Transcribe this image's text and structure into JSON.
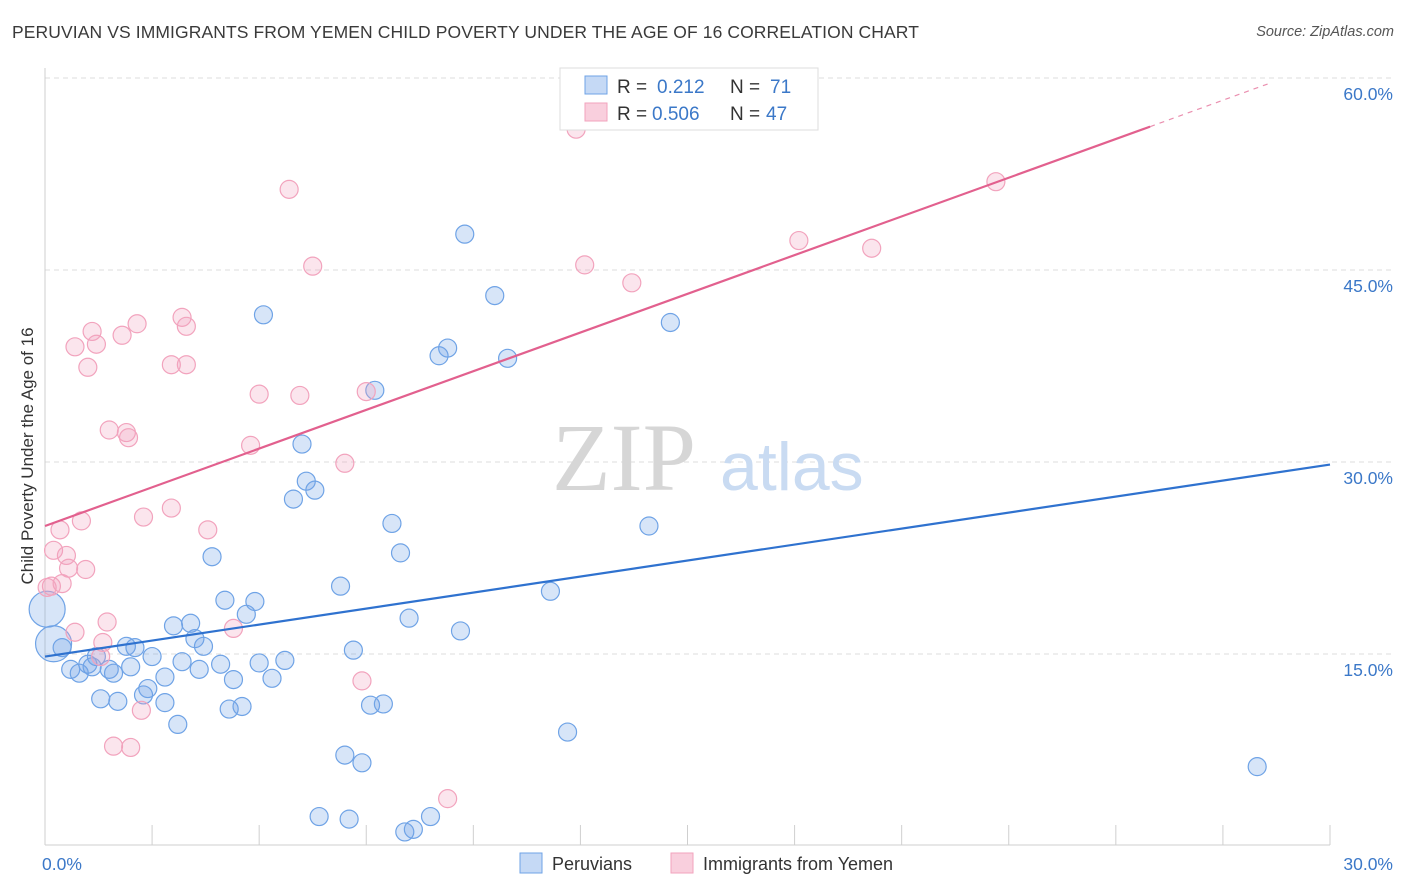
{
  "header": {
    "title": "PERUVIAN VS IMMIGRANTS FROM YEMEN CHILD POVERTY UNDER THE AGE OF 16 CORRELATION CHART",
    "source": "Source: ZipAtlas.com"
  },
  "watermark": {
    "zip": "ZIP",
    "atlas": "atlas"
  },
  "chart_data": {
    "type": "scatter",
    "title": "PERUVIAN VS IMMIGRANTS FROM YEMEN CHILD POVERTY UNDER THE AGE OF 16 CORRELATION CHART",
    "xlabel": "",
    "ylabel": "Child Poverty Under the Age of 16",
    "xlim": [
      0,
      30
    ],
    "ylim": [
      0,
      60
    ],
    "x_tick_labels": [
      {
        "value": 0,
        "label": "0.0%"
      },
      {
        "value": 30,
        "label": "30.0%"
      }
    ],
    "y_tick_labels": [
      {
        "value": 15,
        "label": "15.0%"
      },
      {
        "value": 30,
        "label": "30.0%"
      },
      {
        "value": 45,
        "label": "45.0%"
      },
      {
        "value": 60,
        "label": "60.0%"
      }
    ],
    "grid": true,
    "legend_position": "top-center",
    "series": [
      {
        "name": "Peruvians",
        "color": "#6fa3e6",
        "line_color": "#2f72cf",
        "R": "0.212",
        "N": "71",
        "trend": {
          "x0": 0,
          "y0": 14.8,
          "x1": 30,
          "y1": 29.8
        },
        "points": [
          {
            "x": 0.05,
            "y": 18.5,
            "big": true
          },
          {
            "x": 0.2,
            "y": 15.8,
            "big": true
          },
          {
            "x": 0.4,
            "y": 15.5
          },
          {
            "x": 0.6,
            "y": 13.8
          },
          {
            "x": 0.8,
            "y": 13.5
          },
          {
            "x": 1.0,
            "y": 14.2
          },
          {
            "x": 1.1,
            "y": 14.0
          },
          {
            "x": 1.2,
            "y": 14.8
          },
          {
            "x": 1.3,
            "y": 11.5
          },
          {
            "x": 1.5,
            "y": 13.8
          },
          {
            "x": 1.6,
            "y": 13.5
          },
          {
            "x": 1.7,
            "y": 11.3
          },
          {
            "x": 1.9,
            "y": 15.6
          },
          {
            "x": 2.0,
            "y": 14.0
          },
          {
            "x": 2.1,
            "y": 15.5
          },
          {
            "x": 2.3,
            "y": 11.8
          },
          {
            "x": 2.4,
            "y": 12.3
          },
          {
            "x": 2.5,
            "y": 14.8
          },
          {
            "x": 2.8,
            "y": 11.2
          },
          {
            "x": 2.8,
            "y": 13.2
          },
          {
            "x": 3.0,
            "y": 17.2
          },
          {
            "x": 3.1,
            "y": 9.5
          },
          {
            "x": 3.2,
            "y": 14.4
          },
          {
            "x": 3.4,
            "y": 17.4
          },
          {
            "x": 3.5,
            "y": 16.2
          },
          {
            "x": 3.6,
            "y": 13.8
          },
          {
            "x": 3.7,
            "y": 15.6
          },
          {
            "x": 3.9,
            "y": 22.6
          },
          {
            "x": 4.1,
            "y": 14.2
          },
          {
            "x": 4.2,
            "y": 19.2
          },
          {
            "x": 4.3,
            "y": 10.7
          },
          {
            "x": 4.4,
            "y": 13.0
          },
          {
            "x": 4.6,
            "y": 10.9
          },
          {
            "x": 4.7,
            "y": 18.1
          },
          {
            "x": 4.9,
            "y": 19.1
          },
          {
            "x": 5.0,
            "y": 14.3
          },
          {
            "x": 5.1,
            "y": 41.5
          },
          {
            "x": 5.3,
            "y": 13.1
          },
          {
            "x": 5.6,
            "y": 14.5
          },
          {
            "x": 5.8,
            "y": 27.1
          },
          {
            "x": 6.0,
            "y": 31.4
          },
          {
            "x": 6.1,
            "y": 28.5
          },
          {
            "x": 6.3,
            "y": 27.8
          },
          {
            "x": 6.4,
            "y": 2.3
          },
          {
            "x": 6.9,
            "y": 20.3
          },
          {
            "x": 7.0,
            "y": 7.1
          },
          {
            "x": 7.1,
            "y": 2.1
          },
          {
            "x": 7.2,
            "y": 15.3
          },
          {
            "x": 7.4,
            "y": 6.5
          },
          {
            "x": 7.6,
            "y": 11.0
          },
          {
            "x": 7.7,
            "y": 35.6
          },
          {
            "x": 7.9,
            "y": 11.1
          },
          {
            "x": 8.1,
            "y": 25.2
          },
          {
            "x": 8.3,
            "y": 22.9
          },
          {
            "x": 8.4,
            "y": 1.1
          },
          {
            "x": 8.5,
            "y": 17.8
          },
          {
            "x": 8.6,
            "y": 1.3
          },
          {
            "x": 9.0,
            "y": 2.3
          },
          {
            "x": 9.2,
            "y": 38.3
          },
          {
            "x": 9.4,
            "y": 38.9
          },
          {
            "x": 9.7,
            "y": 16.8
          },
          {
            "x": 9.8,
            "y": 47.8
          },
          {
            "x": 10.5,
            "y": 43.0
          },
          {
            "x": 10.8,
            "y": 38.1
          },
          {
            "x": 11.8,
            "y": 19.9
          },
          {
            "x": 12.2,
            "y": 8.9
          },
          {
            "x": 14.1,
            "y": 25.0
          },
          {
            "x": 14.6,
            "y": 40.9
          },
          {
            "x": 28.3,
            "y": 6.2
          }
        ]
      },
      {
        "name": "Immigrants from Yemen",
        "color": "#f2a3bd",
        "line_color": "#e2608e",
        "R": "0.506",
        "N": "47",
        "trend": {
          "x0": 0,
          "y0": 25.0,
          "x1": 25.8,
          "y1": 56.2
        },
        "trend_dash": {
          "x0": 25.8,
          "y0": 56.2,
          "x1": 28.6,
          "y1": 59.6
        },
        "points": [
          {
            "x": 0.05,
            "y": 20.2
          },
          {
            "x": 0.15,
            "y": 20.3
          },
          {
            "x": 0.2,
            "y": 23.1
          },
          {
            "x": 0.35,
            "y": 24.7
          },
          {
            "x": 0.4,
            "y": 20.5
          },
          {
            "x": 0.5,
            "y": 22.7
          },
          {
            "x": 0.55,
            "y": 21.7
          },
          {
            "x": 0.7,
            "y": 16.7
          },
          {
            "x": 0.7,
            "y": 39.0
          },
          {
            "x": 0.85,
            "y": 25.4
          },
          {
            "x": 0.95,
            "y": 21.6
          },
          {
            "x": 1.0,
            "y": 37.4
          },
          {
            "x": 1.1,
            "y": 40.2
          },
          {
            "x": 1.2,
            "y": 39.2
          },
          {
            "x": 1.3,
            "y": 14.8
          },
          {
            "x": 1.35,
            "y": 15.9
          },
          {
            "x": 1.45,
            "y": 17.5
          },
          {
            "x": 1.5,
            "y": 32.5
          },
          {
            "x": 1.6,
            "y": 7.8
          },
          {
            "x": 1.8,
            "y": 39.9
          },
          {
            "x": 1.9,
            "y": 32.3
          },
          {
            "x": 1.95,
            "y": 31.9
          },
          {
            "x": 2.0,
            "y": 7.7
          },
          {
            "x": 2.15,
            "y": 40.8
          },
          {
            "x": 2.25,
            "y": 10.6
          },
          {
            "x": 2.3,
            "y": 25.7
          },
          {
            "x": 2.95,
            "y": 37.6
          },
          {
            "x": 2.95,
            "y": 26.4
          },
          {
            "x": 3.2,
            "y": 41.3
          },
          {
            "x": 3.3,
            "y": 40.6
          },
          {
            "x": 3.3,
            "y": 37.6
          },
          {
            "x": 3.8,
            "y": 24.7
          },
          {
            "x": 4.4,
            "y": 17.0
          },
          {
            "x": 4.8,
            "y": 31.3
          },
          {
            "x": 5.0,
            "y": 35.3
          },
          {
            "x": 5.7,
            "y": 51.3
          },
          {
            "x": 5.95,
            "y": 35.2
          },
          {
            "x": 6.25,
            "y": 45.3
          },
          {
            "x": 7.0,
            "y": 29.9
          },
          {
            "x": 7.4,
            "y": 12.9
          },
          {
            "x": 7.5,
            "y": 35.5
          },
          {
            "x": 9.4,
            "y": 3.7
          },
          {
            "x": 12.4,
            "y": 56.0
          },
          {
            "x": 12.6,
            "y": 45.4
          },
          {
            "x": 13.7,
            "y": 44.0
          },
          {
            "x": 17.6,
            "y": 47.3
          },
          {
            "x": 19.3,
            "y": 46.7
          },
          {
            "x": 22.2,
            "y": 51.9
          }
        ]
      }
    ]
  },
  "legend": {
    "rows": [
      {
        "r_label": "R =",
        "r_value": "0.212",
        "n_label": "N =",
        "n_value": "71"
      },
      {
        "r_label": "R =",
        "r_value": "0.506",
        "n_label": "N =",
        "n_value": "47"
      }
    ]
  },
  "bottom_legend": [
    {
      "label": "Peruvians"
    },
    {
      "label": "Immigrants from Yemen"
    }
  ]
}
